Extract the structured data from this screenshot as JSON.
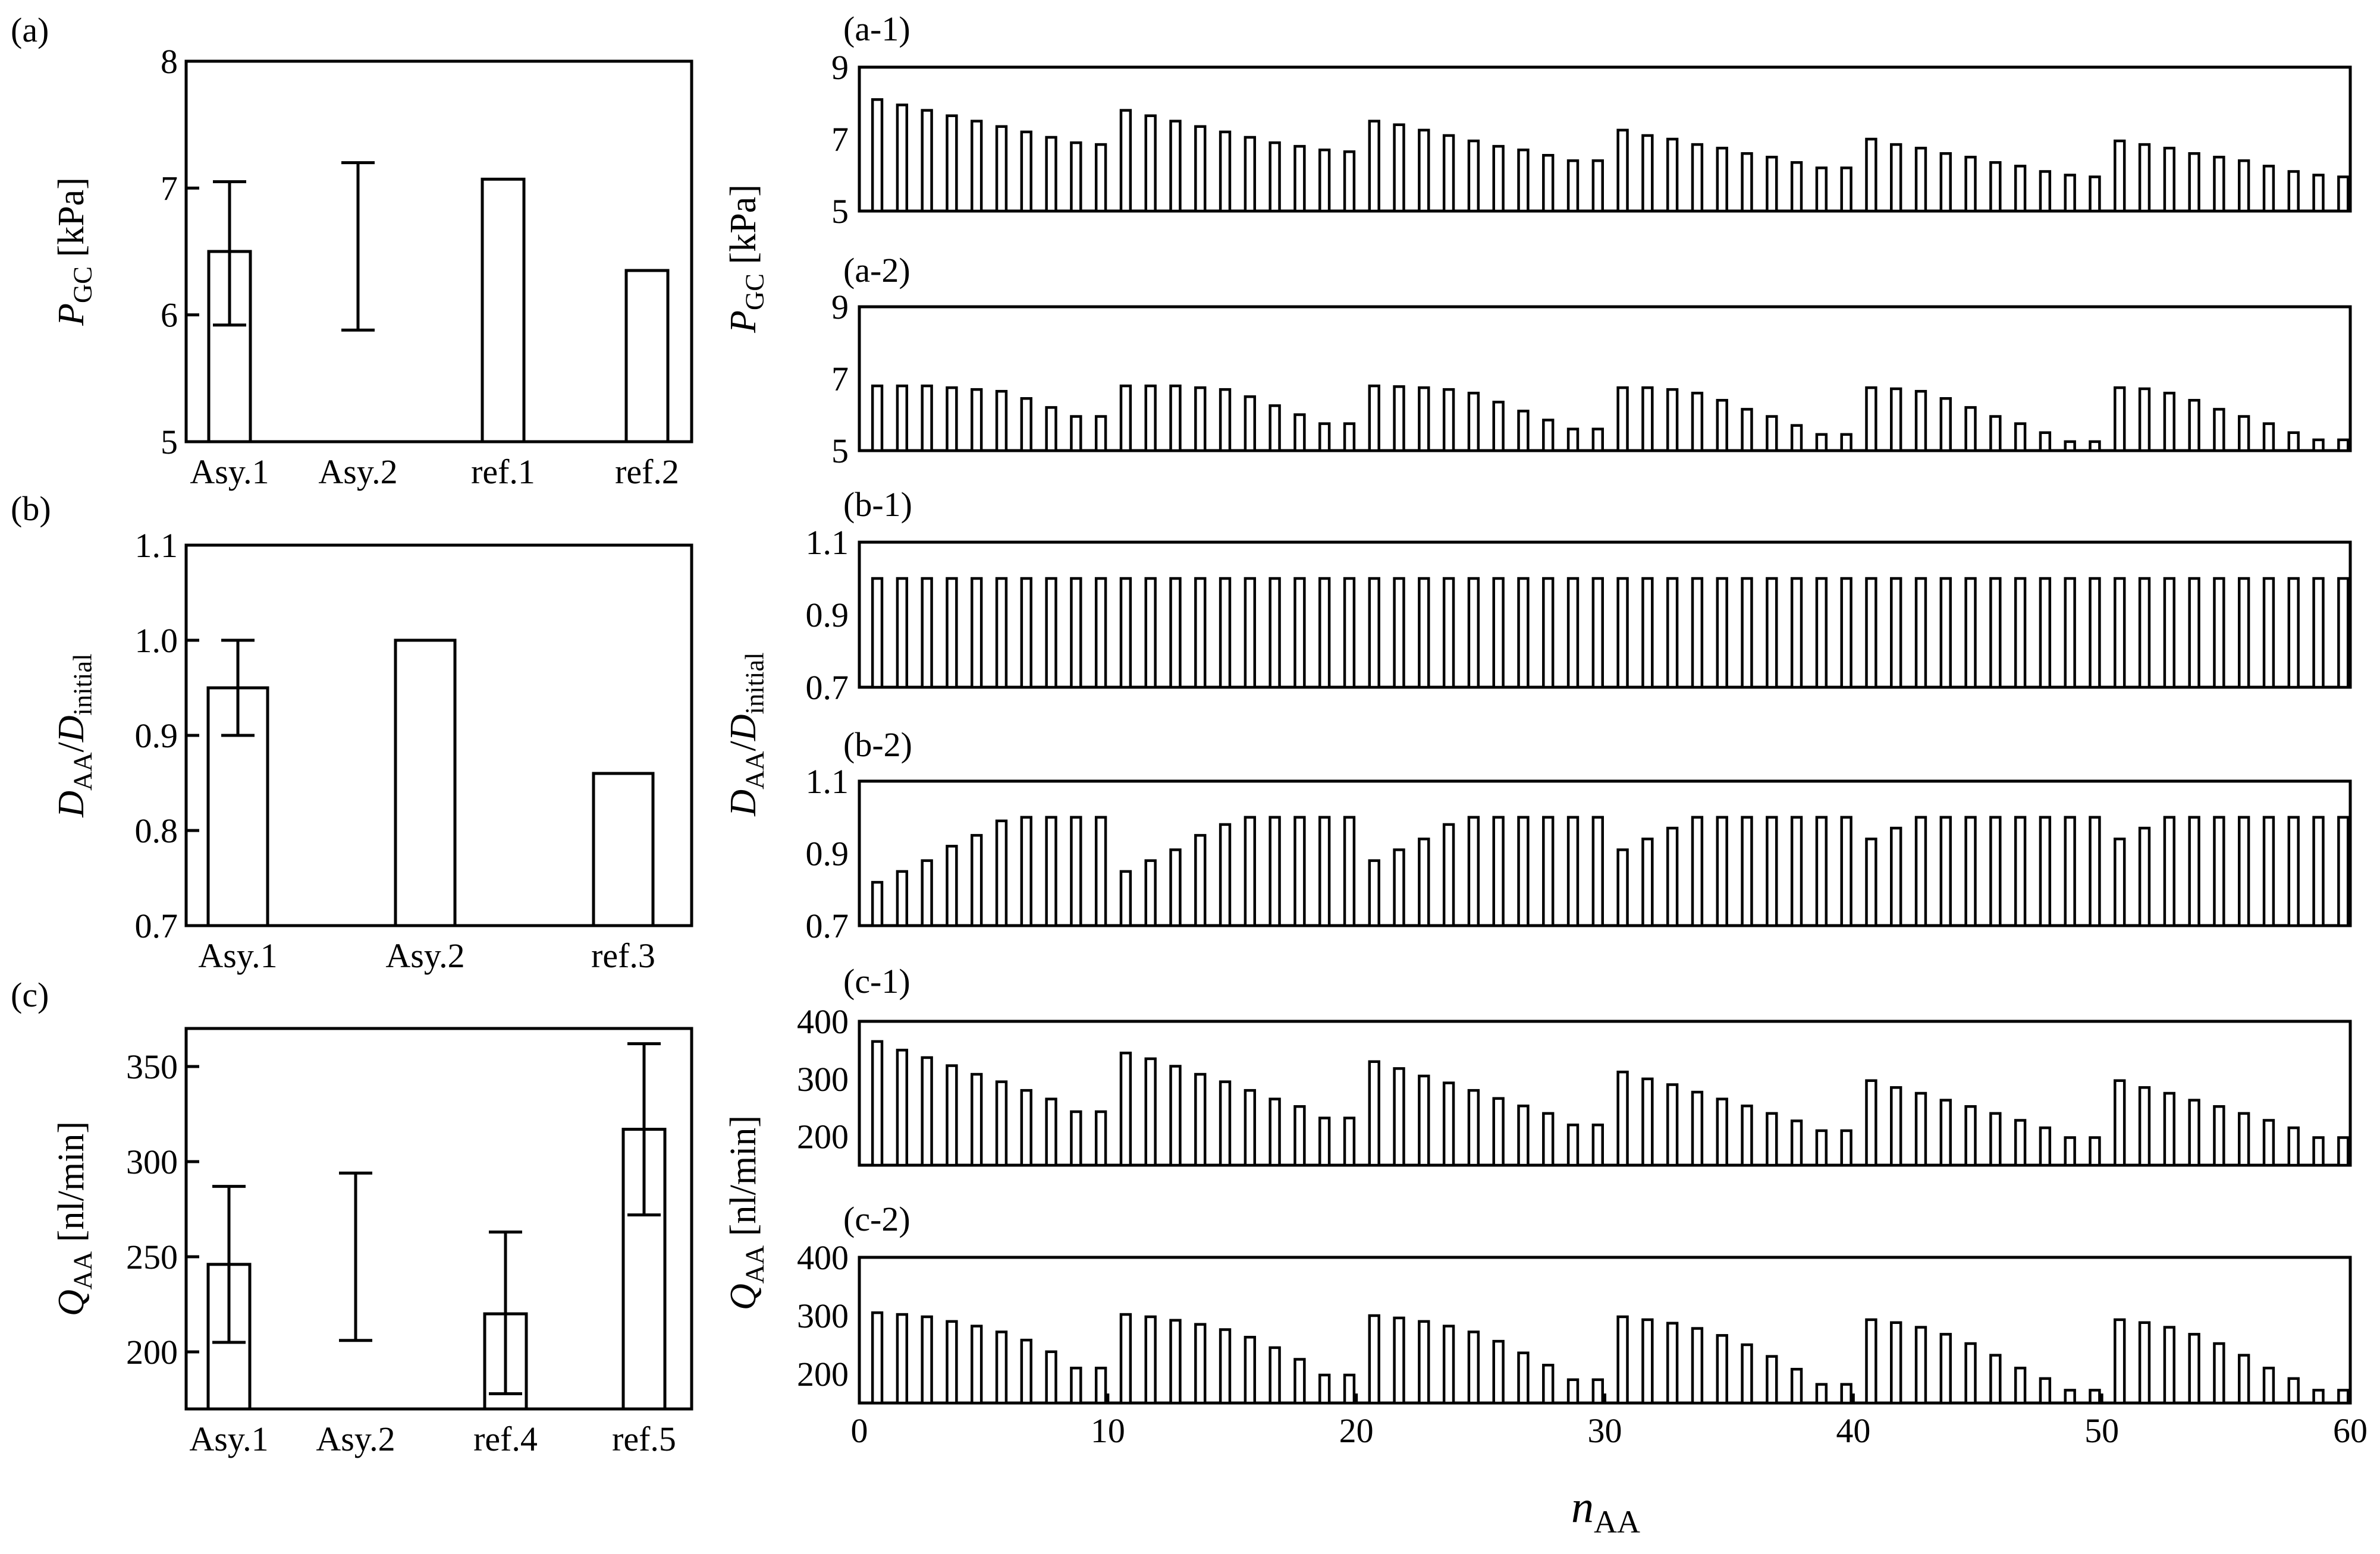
{
  "figure": {
    "shared_xlabel": "n",
    "shared_xlabel_sub": "AA"
  },
  "chart_data": [
    {
      "id": "a",
      "type": "bar",
      "panel_label": "(a)",
      "ylabel": "P",
      "ylabel_sub": "GC",
      "ylabel_unit": " [kPa]",
      "ylim": [
        5,
        8
      ],
      "yticks": [
        5,
        6,
        7,
        8
      ],
      "categories": [
        "Asy.1",
        "Asy.2",
        "ref.1",
        "ref.2"
      ],
      "values": [
        6.5,
        null,
        7.07,
        6.35
      ],
      "errors": [
        [
          5.92,
          7.05
        ],
        [
          5.88,
          7.2
        ],
        null,
        null
      ]
    },
    {
      "id": "b",
      "type": "bar",
      "panel_label": "(b)",
      "ylabel": "D",
      "ylabel_sub": "AA",
      "ylabel_mid": "/D",
      "ylabel_sub2": "initial",
      "ylim": [
        0.7,
        1.1
      ],
      "yticks": [
        0.7,
        0.8,
        0.9,
        1.0,
        1.1
      ],
      "ytick_labels": [
        "0.7",
        "0.8",
        "0.9",
        "1.0",
        "1.1"
      ],
      "categories": [
        "Asy.1",
        "Asy.2",
        "ref.3"
      ],
      "values": [
        0.95,
        1.0,
        0.86
      ],
      "errors": [
        [
          0.9,
          1.0
        ],
        [
          1.0,
          1.0
        ],
        [
          0.86,
          0.86
        ]
      ]
    },
    {
      "id": "c",
      "type": "bar",
      "panel_label": "(c)",
      "ylabel": "Q",
      "ylabel_sub": "AA",
      "ylabel_unit": " [nl/min]",
      "ylim": [
        170,
        370
      ],
      "yticks": [
        200,
        250,
        300,
        350
      ],
      "categories": [
        "Asy.1",
        "Asy.2",
        "ref.4",
        "ref.5"
      ],
      "values": [
        246,
        null,
        220,
        317
      ],
      "errors": [
        [
          205,
          287
        ],
        [
          206,
          294
        ],
        [
          178,
          263
        ],
        [
          272,
          362
        ]
      ]
    },
    {
      "id": "a-1",
      "type": "bar",
      "panel_label": "(a-1)",
      "ylim": [
        5,
        9
      ],
      "yticks": [
        5,
        7,
        9
      ],
      "x_range": [
        0,
        60
      ],
      "values": [
        8.1,
        7.95,
        7.8,
        7.65,
        7.5,
        7.35,
        7.2,
        7.05,
        6.9,
        6.85,
        7.8,
        7.65,
        7.5,
        7.35,
        7.2,
        7.05,
        6.9,
        6.8,
        6.7,
        6.65,
        7.5,
        7.4,
        7.25,
        7.1,
        6.95,
        6.8,
        6.7,
        6.55,
        6.4,
        6.4,
        7.25,
        7.1,
        7.0,
        6.85,
        6.75,
        6.6,
        6.5,
        6.35,
        6.2,
        6.2,
        7.0,
        6.85,
        6.75,
        6.6,
        6.5,
        6.35,
        6.25,
        6.1,
        6.0,
        5.95,
        6.95,
        6.85,
        6.75,
        6.6,
        6.5,
        6.4,
        6.25,
        6.1,
        6.0,
        5.95
      ]
    },
    {
      "id": "a-2",
      "type": "bar",
      "panel_label": "(a-2)",
      "ylim": [
        5,
        9
      ],
      "yticks": [
        5,
        7,
        9
      ],
      "x_range": [
        0,
        60
      ],
      "values": [
        6.8,
        6.8,
        6.8,
        6.75,
        6.7,
        6.65,
        6.45,
        6.2,
        5.95,
        5.95,
        6.8,
        6.8,
        6.8,
        6.75,
        6.7,
        6.5,
        6.25,
        6.0,
        5.75,
        5.75,
        6.8,
        6.78,
        6.75,
        6.7,
        6.6,
        6.35,
        6.1,
        5.85,
        5.6,
        5.6,
        6.75,
        6.75,
        6.7,
        6.6,
        6.4,
        6.15,
        5.95,
        5.7,
        5.45,
        5.45,
        6.75,
        6.72,
        6.65,
        6.45,
        6.2,
        5.95,
        5.75,
        5.5,
        5.25,
        5.25,
        6.75,
        6.72,
        6.6,
        6.4,
        6.15,
        5.95,
        5.75,
        5.5,
        5.3,
        5.3
      ]
    },
    {
      "id": "b-1",
      "type": "bar",
      "panel_label": "(b-1)",
      "ylim": [
        0.7,
        1.1
      ],
      "yticks": [
        0.7,
        0.9,
        1.1
      ],
      "x_range": [
        0,
        60
      ],
      "values": [
        1,
        1,
        1,
        1,
        1,
        1,
        1,
        1,
        1,
        1,
        1,
        1,
        1,
        1,
        1,
        1,
        1,
        1,
        1,
        1,
        1,
        1,
        1,
        1,
        1,
        1,
        1,
        1,
        1,
        1,
        1,
        1,
        1,
        1,
        1,
        1,
        1,
        1,
        1,
        1,
        1,
        1,
        1,
        1,
        1,
        1,
        1,
        1,
        1,
        1,
        1,
        1,
        1,
        1,
        1,
        1,
        1,
        1,
        1,
        1
      ]
    },
    {
      "id": "b-2",
      "type": "bar",
      "panel_label": "(b-2)",
      "ylim": [
        0.7,
        1.1
      ],
      "yticks": [
        0.7,
        0.9,
        1.1
      ],
      "x_range": [
        0,
        60
      ],
      "values": [
        0.82,
        0.85,
        0.88,
        0.92,
        0.95,
        0.99,
        1,
        1,
        1,
        1,
        0.85,
        0.88,
        0.91,
        0.95,
        0.98,
        1,
        1,
        1,
        1,
        1,
        0.88,
        0.91,
        0.94,
        0.98,
        1,
        1,
        1,
        1,
        1,
        1,
        0.91,
        0.94,
        0.97,
        1,
        1,
        1,
        1,
        1,
        1,
        1,
        0.94,
        0.97,
        1,
        1,
        1,
        1,
        1,
        1,
        1,
        1,
        0.94,
        0.97,
        1,
        1,
        1,
        1,
        1,
        1,
        1,
        1
      ]
    },
    {
      "id": "c-1",
      "type": "bar",
      "panel_label": "(c-1)",
      "ylim": [
        150,
        400
      ],
      "yticks": [
        200,
        300,
        400
      ],
      "x_range": [
        0,
        60
      ],
      "values": [
        365,
        350,
        337,
        323,
        308,
        295,
        280,
        265,
        243,
        243,
        345,
        335,
        322,
        308,
        295,
        280,
        265,
        252,
        232,
        232,
        330,
        318,
        305,
        293,
        280,
        266,
        253,
        240,
        220,
        220,
        312,
        300,
        290,
        277,
        265,
        253,
        240,
        227,
        210,
        210,
        297,
        285,
        275,
        263,
        252,
        240,
        228,
        215,
        198,
        198,
        297,
        285,
        275,
        263,
        252,
        240,
        228,
        215,
        198,
        198
      ]
    },
    {
      "id": "c-2",
      "type": "bar",
      "panel_label": "(c-2)",
      "ylim": [
        150,
        400
      ],
      "yticks": [
        200,
        300,
        400
      ],
      "x_range": [
        0,
        60
      ],
      "xticks": [
        0,
        10,
        20,
        30,
        40,
        50,
        60
      ],
      "values": [
        305,
        302,
        298,
        290,
        282,
        272,
        258,
        238,
        210,
        210,
        302,
        298,
        292,
        285,
        276,
        263,
        245,
        225,
        198,
        198,
        300,
        296,
        290,
        282,
        272,
        256,
        236,
        215,
        190,
        190,
        298,
        293,
        287,
        278,
        266,
        250,
        230,
        208,
        182,
        182,
        293,
        288,
        280,
        268,
        252,
        232,
        210,
        192,
        172,
        172,
        293,
        288,
        280,
        268,
        252,
        232,
        210,
        192,
        172,
        172
      ]
    }
  ]
}
